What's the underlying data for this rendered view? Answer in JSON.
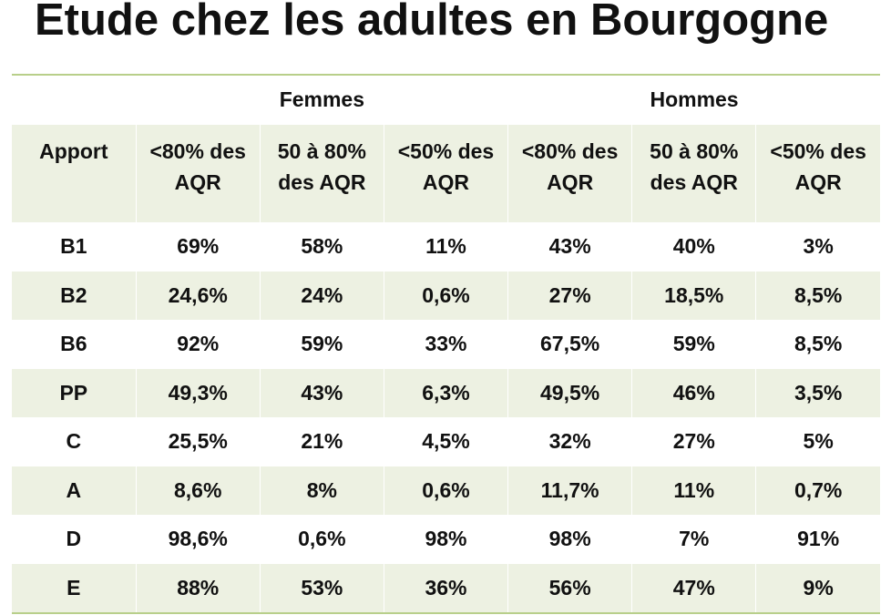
{
  "title": "Etude chez les adultes en Bourgogne",
  "groups": {
    "women": "Femmes",
    "men": "Hommes"
  },
  "columns": [
    {
      "line1": "Apport",
      "line2": ""
    },
    {
      "line1": "<80% des",
      "line2": "AQR"
    },
    {
      "line1": "50 à 80%",
      "line2": "des AQR"
    },
    {
      "line1": "<50% des",
      "line2": "AQR"
    },
    {
      "line1": "<80% des",
      "line2": "AQR"
    },
    {
      "line1": "50 à 80%",
      "line2": "des AQR"
    },
    {
      "line1": "<50% des",
      "line2": "AQR"
    }
  ],
  "rows": [
    {
      "apport": "B1",
      "values": [
        "69%",
        "58%",
        "11%",
        "43%",
        "40%",
        "3%"
      ]
    },
    {
      "apport": "B2",
      "values": [
        "24,6%",
        "24%",
        "0,6%",
        "27%",
        "18,5%",
        "8,5%"
      ]
    },
    {
      "apport": "B6",
      "values": [
        "92%",
        "59%",
        "33%",
        "67,5%",
        "59%",
        "8,5%"
      ]
    },
    {
      "apport": "PP",
      "values": [
        "49,3%",
        "43%",
        "6,3%",
        "49,5%",
        "46%",
        "3,5%"
      ]
    },
    {
      "apport": "C",
      "values": [
        "25,5%",
        "21%",
        "4,5%",
        "32%",
        "27%",
        "5%"
      ]
    },
    {
      "apport": "A",
      "values": [
        "8,6%",
        "8%",
        "0,6%",
        "11,7%",
        "11%",
        "0,7%"
      ]
    },
    {
      "apport": "D",
      "values": [
        "98,6%",
        "0,6%",
        "98%",
        "98%",
        "7%",
        "91%"
      ]
    },
    {
      "apport": "E",
      "values": [
        "88%",
        "53%",
        "36%",
        "56%",
        "47%",
        "9%"
      ]
    }
  ],
  "colors": {
    "accent_line": "#b8cf8a",
    "row_shade": "#edf1e2"
  }
}
